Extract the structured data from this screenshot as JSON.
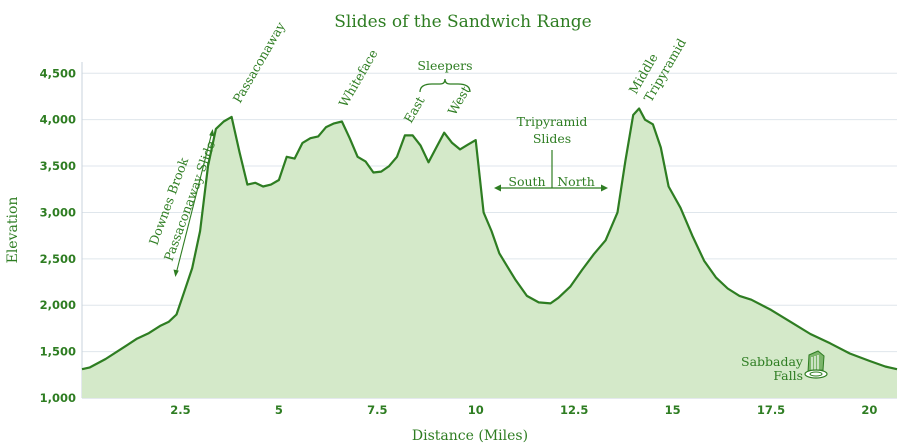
{
  "chart_data": {
    "type": "area",
    "title": "Slides of the Sandwich Range",
    "xlabel": "Distance (Miles)",
    "ylabel": "Elevation",
    "xlim": [
      0,
      20.7
    ],
    "ylim": [
      1000,
      4600
    ],
    "x_ticks": [
      2.5,
      5,
      7.5,
      10,
      12.5,
      15,
      17.5,
      20
    ],
    "x_tick_labels": [
      "2.5",
      "5",
      "7.5",
      "10",
      "12.5",
      "15",
      "17.5",
      "20"
    ],
    "y_ticks": [
      1000,
      1500,
      2000,
      2500,
      3000,
      3500,
      4000,
      4500
    ],
    "y_tick_labels": [
      "1,000",
      "1,500",
      "2,000",
      "2,500",
      "3,000",
      "3,500",
      "4,000",
      "4,500"
    ],
    "grid": true,
    "colors": {
      "line": "#2e7d22",
      "fill": "#d4e9c9",
      "text": "#2e7d22",
      "grid": "#dfe6ec"
    },
    "series": [
      {
        "x": [
          0.0,
          0.2,
          0.6,
          1.0,
          1.4,
          1.7,
          2.0,
          2.2,
          2.4,
          2.6,
          2.8,
          3.0,
          3.2,
          3.4,
          3.6,
          3.8,
          4.0,
          4.2,
          4.4,
          4.6,
          4.8,
          5.0,
          5.2,
          5.4,
          5.6,
          5.8,
          6.0,
          6.2,
          6.4,
          6.6,
          6.8,
          7.0,
          7.2,
          7.4,
          7.6,
          7.8,
          8.0,
          8.2,
          8.4,
          8.6,
          8.8,
          9.0,
          9.2,
          9.4,
          9.6,
          9.8,
          10.0,
          10.2,
          10.4,
          10.6,
          10.8,
          11.0,
          11.3,
          11.6,
          11.9,
          12.1,
          12.4,
          12.7,
          13.0,
          13.3,
          13.6,
          13.8,
          14.0,
          14.15,
          14.3,
          14.5,
          14.7,
          14.9,
          15.2,
          15.5,
          15.8,
          16.1,
          16.4,
          16.7,
          17.0,
          17.5,
          18.0,
          18.5,
          19.0,
          19.5,
          20.0,
          20.4,
          20.7
        ],
        "y": [
          1310,
          1330,
          1420,
          1530,
          1640,
          1700,
          1780,
          1820,
          1900,
          2150,
          2400,
          2800,
          3500,
          3900,
          3980,
          4030,
          3650,
          3300,
          3320,
          3280,
          3300,
          3350,
          3600,
          3580,
          3750,
          3800,
          3820,
          3920,
          3960,
          3980,
          3800,
          3600,
          3550,
          3430,
          3440,
          3500,
          3600,
          3830,
          3830,
          3720,
          3540,
          3700,
          3860,
          3750,
          3680,
          3730,
          3780,
          3000,
          2800,
          2560,
          2420,
          2280,
          2100,
          2030,
          2020,
          2080,
          2200,
          2380,
          2550,
          2700,
          3000,
          3550,
          4050,
          4120,
          4000,
          3950,
          3700,
          3280,
          3050,
          2750,
          2480,
          2300,
          2180,
          2100,
          2060,
          1950,
          1820,
          1690,
          1590,
          1480,
          1400,
          1340,
          1310
        ]
      }
    ],
    "annotations": {
      "passaconaway": "Passaconaway",
      "whiteface": "Whiteface",
      "sleepers": "Sleepers",
      "east": "East",
      "west": "West",
      "middle": "Middle",
      "tripyramid": "Tripyramid",
      "tripyramid_slides_1": "Tripyramid",
      "tripyramid_slides_2": "Slides",
      "south": "South",
      "north": "North",
      "downes_brook": "Downes Brook",
      "passaconaway_slide": "Passaconaway Slide",
      "sabbaday_1": "Sabbaday",
      "sabbaday_2": "Falls"
    }
  }
}
